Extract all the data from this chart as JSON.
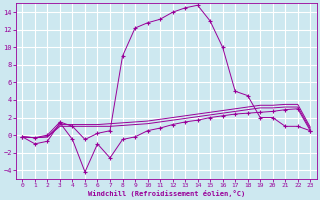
{
  "background_color": "#cde8f0",
  "grid_color": "#ffffff",
  "line_color": "#990099",
  "xlim": [
    -0.5,
    23.5
  ],
  "ylim": [
    -5,
    15
  ],
  "yticks": [
    -4,
    -2,
    0,
    2,
    4,
    6,
    8,
    10,
    12,
    14
  ],
  "xticks": [
    0,
    1,
    2,
    3,
    4,
    5,
    6,
    7,
    8,
    9,
    10,
    11,
    12,
    13,
    14,
    15,
    16,
    17,
    18,
    19,
    20,
    21,
    22,
    23
  ],
  "xlabel": "Windchill (Refroidissement éolien,°C)",
  "line_zigzag_x": [
    0,
    1,
    2,
    3,
    4,
    5,
    6,
    7,
    8,
    9,
    10,
    11,
    12,
    13,
    14,
    15,
    16,
    17,
    18,
    19,
    20,
    21,
    22,
    23
  ],
  "line_zigzag_y": [
    -0.2,
    -1.0,
    -0.7,
    1.4,
    -0.5,
    -4.2,
    -1.0,
    -2.6,
    -0.5,
    -0.2,
    0.5,
    0.8,
    1.2,
    1.5,
    1.7,
    2.0,
    2.2,
    2.4,
    2.5,
    2.6,
    2.7,
    2.9,
    3.0,
    0.5
  ],
  "line_peak_x": [
    0,
    1,
    2,
    3,
    4,
    5,
    6,
    7,
    8,
    9,
    10,
    11,
    12,
    13,
    14,
    15,
    16,
    17,
    18,
    19,
    20,
    21,
    22,
    23
  ],
  "line_peak_y": [
    -0.2,
    -0.3,
    0.0,
    1.5,
    1.0,
    -0.5,
    0.2,
    0.5,
    9.0,
    12.2,
    12.8,
    13.2,
    14.0,
    14.5,
    14.8,
    13.0,
    10.0,
    5.0,
    4.5,
    2.0,
    2.0,
    1.0,
    1.0,
    0.5
  ],
  "line_smooth1_x": [
    0,
    1,
    2,
    3,
    4,
    5,
    6,
    7,
    8,
    9,
    10,
    11,
    12,
    13,
    14,
    15,
    16,
    17,
    18,
    19,
    20,
    21,
    22,
    23
  ],
  "line_smooth1_y": [
    -0.2,
    -0.3,
    -0.2,
    1.2,
    1.2,
    1.2,
    1.2,
    1.3,
    1.4,
    1.5,
    1.6,
    1.8,
    2.0,
    2.2,
    2.4,
    2.6,
    2.8,
    3.0,
    3.2,
    3.4,
    3.4,
    3.5,
    3.5,
    0.9
  ],
  "line_smooth2_x": [
    0,
    1,
    2,
    3,
    4,
    5,
    6,
    7,
    8,
    9,
    10,
    11,
    12,
    13,
    14,
    15,
    16,
    17,
    18,
    19,
    20,
    21,
    22,
    23
  ],
  "line_smooth2_y": [
    -0.2,
    -0.3,
    -0.2,
    1.0,
    1.0,
    1.0,
    1.0,
    1.0,
    1.1,
    1.2,
    1.3,
    1.5,
    1.7,
    1.9,
    2.1,
    2.3,
    2.5,
    2.7,
    2.9,
    3.1,
    3.1,
    3.2,
    3.2,
    0.7
  ]
}
